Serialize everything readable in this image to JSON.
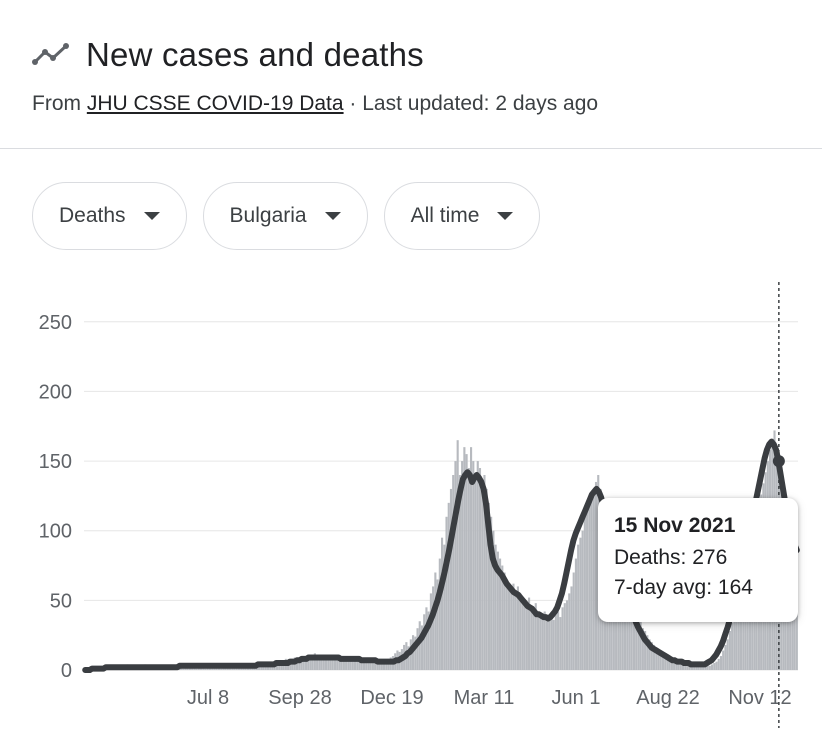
{
  "header": {
    "title": "New cases and deaths",
    "subtitle_prefix": "From ",
    "source_link": "JHU CSSE COVID-19 Data",
    "subtitle_suffix": " · Last updated: 2 days ago"
  },
  "filters": [
    {
      "label": "Deaths"
    },
    {
      "label": "Bulgaria"
    },
    {
      "label": "All time"
    }
  ],
  "tooltip": {
    "date": "15 Nov 2021",
    "deaths_label": "Deaths: 276",
    "avg_label": "7-day avg: 164"
  },
  "colors": {
    "bars": "#b7babf",
    "avg_line": "#3a3d41",
    "grid": "#e6e6e6",
    "axis_text": "#5f6368"
  },
  "chart_data": {
    "type": "bar",
    "title": "",
    "xlabel": "",
    "ylabel": "",
    "ylim": [
      0,
      280
    ],
    "yticks": [
      0,
      50,
      100,
      150,
      200,
      250
    ],
    "xtick_labels": [
      "Jul 8",
      "Sep 28",
      "Dec 19",
      "Mar 11",
      "Jun 1",
      "Aug 22",
      "Nov 12"
    ],
    "x_start": "2020-03-08",
    "x_end": "2021-12-02",
    "grid": true,
    "legend": "none",
    "highlight_date": "2021-11-15",
    "series": [
      {
        "kind": "bars",
        "values_description": "daily deaths",
        "values": [
          0,
          0,
          1,
          0,
          0,
          1,
          0,
          1,
          2,
          1,
          2,
          1,
          0,
          2,
          1,
          3,
          2,
          1,
          2,
          4,
          2,
          1,
          3,
          2,
          1,
          2,
          3,
          4,
          2,
          1,
          3,
          2,
          1,
          2,
          3,
          2,
          1,
          2,
          3,
          1,
          2,
          3,
          4,
          2,
          1,
          2,
          3,
          4,
          3,
          2,
          1,
          2,
          3,
          2,
          1,
          2,
          4,
          3,
          2,
          3,
          2,
          1,
          3,
          2,
          4,
          3,
          2,
          3,
          4,
          3,
          2,
          4,
          3,
          4,
          5,
          3,
          4,
          3,
          5,
          4,
          6,
          5,
          4,
          5,
          6,
          5,
          4,
          6,
          5,
          7,
          8,
          6,
          7,
          8,
          9,
          7,
          8,
          10,
          9,
          8,
          11,
          10,
          9,
          12,
          10,
          8,
          9,
          11,
          9,
          8,
          10,
          9,
          8,
          7,
          9,
          8,
          7,
          8,
          9,
          7,
          6,
          8,
          7,
          6,
          7,
          8,
          6,
          7,
          6,
          5,
          6,
          7,
          6,
          5,
          6,
          7,
          8,
          9,
          10,
          12,
          14,
          13,
          15,
          18,
          20,
          17,
          22,
          25,
          24,
          30,
          35,
          32,
          40,
          45,
          42,
          55,
          60,
          70,
          65,
          80,
          95,
          90,
          110,
          120,
          130,
          140,
          150,
          165,
          140,
          150,
          160,
          155,
          145,
          160,
          150,
          140,
          150,
          145,
          135,
          140,
          130,
          120,
          110,
          100,
          90,
          85,
          80,
          75,
          70,
          65,
          60,
          58,
          62,
          55,
          60,
          55,
          52,
          50,
          48,
          52,
          45,
          40,
          48,
          42,
          40,
          38,
          42,
          35,
          40,
          38,
          36,
          40,
          42,
          38,
          45,
          48,
          50,
          55,
          60,
          70,
          80,
          90,
          95,
          100,
          110,
          115,
          120,
          125,
          130,
          135,
          140,
          130,
          125,
          120,
          115,
          110,
          105,
          100,
          90,
          85,
          80,
          75,
          70,
          65,
          60,
          55,
          50,
          45,
          40,
          35,
          30,
          28,
          25,
          22,
          20,
          18,
          16,
          15,
          14,
          13,
          12,
          11,
          10,
          9,
          8,
          7,
          6,
          8,
          7,
          6,
          5,
          6,
          5,
          4,
          5,
          4,
          3,
          4,
          5,
          4,
          3,
          4,
          5,
          6,
          8,
          10,
          14,
          18,
          22,
          28,
          34,
          40,
          46,
          52,
          58,
          65,
          72,
          80,
          88,
          95,
          102,
          110,
          118,
          126,
          134,
          142,
          150,
          158,
          166,
          172,
          160,
          150,
          140,
          130,
          120,
          110,
          100,
          95,
          90,
          85
        ]
      },
      {
        "kind": "line",
        "name": "7-day avg",
        "values_description": "7-day average deaths",
        "values": [
          0,
          0,
          0,
          1,
          1,
          1,
          1,
          1,
          1,
          2,
          2,
          2,
          2,
          2,
          2,
          2,
          2,
          2,
          2,
          2,
          2,
          2,
          2,
          2,
          2,
          2,
          2,
          2,
          2,
          2,
          2,
          2,
          2,
          2,
          2,
          2,
          2,
          2,
          2,
          2,
          2,
          3,
          3,
          3,
          3,
          3,
          3,
          3,
          3,
          3,
          3,
          3,
          3,
          3,
          3,
          3,
          3,
          3,
          3,
          3,
          3,
          3,
          3,
          3,
          3,
          3,
          3,
          3,
          3,
          3,
          3,
          3,
          3,
          3,
          3,
          4,
          4,
          4,
          4,
          4,
          4,
          4,
          4,
          5,
          5,
          5,
          5,
          5,
          5,
          6,
          6,
          6,
          7,
          7,
          8,
          8,
          8,
          9,
          9,
          9,
          9,
          9,
          9,
          9,
          9,
          9,
          9,
          9,
          9,
          9,
          9,
          8,
          8,
          8,
          8,
          8,
          8,
          8,
          8,
          8,
          7,
          7,
          7,
          7,
          7,
          7,
          7,
          6,
          6,
          6,
          6,
          6,
          6,
          6,
          6,
          7,
          7,
          8,
          9,
          10,
          12,
          13,
          15,
          17,
          19,
          21,
          23,
          26,
          29,
          32,
          36,
          40,
          45,
          50,
          56,
          63,
          70,
          78,
          86,
          95,
          104,
          113,
          122,
          130,
          137,
          140,
          142,
          140,
          135,
          138,
          140,
          138,
          135,
          130,
          120,
          105,
          90,
          80,
          75,
          72,
          70,
          68,
          65,
          62,
          60,
          58,
          56,
          55,
          54,
          52,
          50,
          48,
          46,
          45,
          44,
          42,
          40,
          40,
          39,
          38,
          38,
          37,
          38,
          40,
          42,
          45,
          50,
          55,
          62,
          70,
          78,
          86,
          93,
          98,
          102,
          106,
          110,
          114,
          118,
          122,
          126,
          128,
          130,
          128,
          124,
          118,
          112,
          106,
          100,
          94,
          88,
          82,
          76,
          70,
          64,
          58,
          52,
          46,
          40,
          35,
          31,
          28,
          25,
          22,
          20,
          18,
          16,
          15,
          14,
          13,
          12,
          11,
          10,
          9,
          8,
          7,
          7,
          6,
          6,
          6,
          5,
          5,
          5,
          4,
          4,
          4,
          4,
          4,
          4,
          4,
          5,
          6,
          7,
          9,
          11,
          14,
          17,
          21,
          26,
          31,
          37,
          43,
          50,
          57,
          64,
          72,
          80,
          88,
          96,
          104,
          112,
          120,
          128,
          136,
          144,
          152,
          158,
          162,
          164,
          162,
          158,
          150,
          140,
          130,
          120,
          110,
          102,
          95,
          90,
          86
        ]
      }
    ]
  }
}
